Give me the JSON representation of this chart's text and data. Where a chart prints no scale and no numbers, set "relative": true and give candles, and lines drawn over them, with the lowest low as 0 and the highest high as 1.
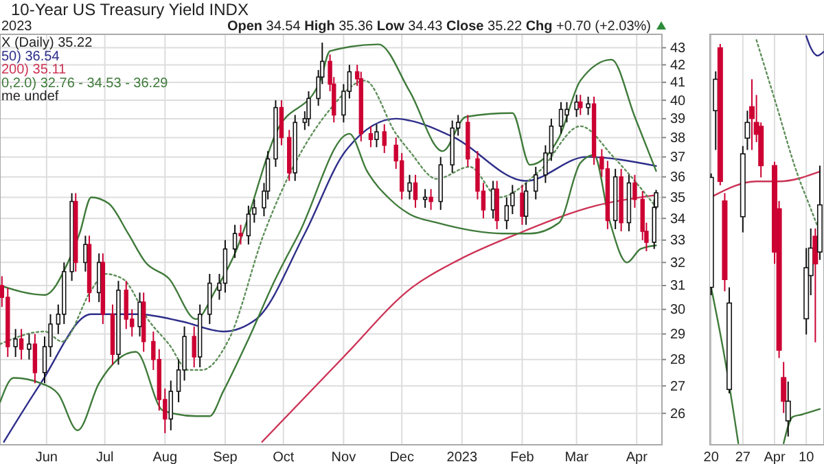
{
  "chart_data": [
    {
      "type": "candlestick",
      "title": "10-Year US Treasury Yield INDX",
      "subtitle": "Open 34.54 High 35.36 Low 34.43 Close 35.22 Chg +0.70 (+2.03%)",
      "annotations": [
        "2023",
        "X (Daily) 35.22",
        "me undef"
      ],
      "log": true,
      "grid": true,
      "legend": "top left",
      "xlim": [
        "2022-05-08",
        "2023-04-14"
      ],
      "xticks": [
        {
          "value": "2022-06-01",
          "label": "Jun"
        },
        {
          "value": "2022-07-01",
          "label": "Jul"
        },
        {
          "value": "2022-08-01",
          "label": "Aug"
        },
        {
          "value": "2022-09-01",
          "label": "Sep"
        },
        {
          "value": "2022-10-01",
          "label": "Oct"
        },
        {
          "value": "2022-11-01",
          "label": "Nov"
        },
        {
          "value": "2022-12-01",
          "label": "Dec"
        },
        {
          "value": "2023-01-01",
          "label": "2023"
        },
        {
          "value": "2023-02-01",
          "label": "Feb"
        },
        {
          "value": "2023-03-01",
          "label": "Mar"
        },
        {
          "value": "2023-04-01",
          "label": "Apr"
        }
      ],
      "ylim": [
        24.9,
        43.8
      ],
      "yticks": [
        26,
        27,
        28,
        29,
        30,
        31,
        32,
        33,
        34,
        35,
        36,
        37,
        38,
        39,
        40,
        41,
        42,
        43
      ],
      "x": [
        "2022-05-09",
        "2022-05-12",
        "2022-05-16",
        "2022-05-19",
        "2022-05-23",
        "2022-05-26",
        "2022-05-31",
        "2022-06-03",
        "2022-06-07",
        "2022-06-10",
        "2022-06-14",
        "2022-06-16",
        "2022-06-21",
        "2022-06-23",
        "2022-06-28",
        "2022-06-30",
        "2022-07-05",
        "2022-07-08",
        "2022-07-12",
        "2022-07-15",
        "2022-07-19",
        "2022-07-21",
        "2022-07-26",
        "2022-07-29",
        "2022-08-01",
        "2022-08-04",
        "2022-08-08",
        "2022-08-11",
        "2022-08-16",
        "2022-08-19",
        "2022-08-24",
        "2022-08-29",
        "2022-09-01",
        "2022-09-06",
        "2022-09-09",
        "2022-09-13",
        "2022-09-16",
        "2022-09-21",
        "2022-09-23",
        "2022-09-27",
        "2022-09-30",
        "2022-10-04",
        "2022-10-07",
        "2022-10-12",
        "2022-10-14",
        "2022-10-19",
        "2022-10-21",
        "2022-10-25",
        "2022-10-27",
        "2022-11-01",
        "2022-11-04",
        "2022-11-08",
        "2022-11-10",
        "2022-11-15",
        "2022-11-18",
        "2022-11-22",
        "2022-11-28",
        "2022-12-01",
        "2022-12-05",
        "2022-12-08",
        "2022-12-13",
        "2022-12-16",
        "2022-12-21",
        "2022-12-27",
        "2022-12-30",
        "2023-01-04",
        "2023-01-09",
        "2023-01-12",
        "2023-01-17",
        "2023-01-19",
        "2023-01-24",
        "2023-01-27",
        "2023-02-01",
        "2023-02-03",
        "2023-02-08",
        "2023-02-13",
        "2023-02-16",
        "2023-02-21",
        "2023-02-24",
        "2023-03-01",
        "2023-03-03",
        "2023-03-07",
        "2023-03-10",
        "2023-03-14",
        "2023-03-17",
        "2023-03-21",
        "2023-03-24",
        "2023-03-28",
        "2023-03-31",
        "2023-04-04",
        "2023-04-06",
        "2023-04-10",
        "2023-04-11"
      ],
      "ohlc": [
        [
          31.0,
          31.4,
          30.1,
          30.5
        ],
        [
          30.5,
          30.9,
          28.1,
          28.5
        ],
        [
          28.5,
          29.2,
          28.1,
          28.8
        ],
        [
          28.8,
          29.2,
          28.0,
          28.4
        ],
        [
          28.4,
          29.0,
          28.0,
          28.6
        ],
        [
          28.6,
          29.0,
          27.1,
          27.5
        ],
        [
          27.5,
          28.9,
          27.1,
          28.5
        ],
        [
          28.5,
          29.8,
          28.1,
          29.4
        ],
        [
          29.4,
          30.2,
          29.0,
          29.8
        ],
        [
          29.8,
          32.0,
          29.4,
          31.6
        ],
        [
          31.6,
          35.2,
          31.2,
          34.8
        ],
        [
          34.8,
          35.2,
          31.6,
          32.0
        ],
        [
          32.0,
          33.2,
          31.6,
          32.8
        ],
        [
          32.8,
          33.2,
          30.3,
          30.7
        ],
        [
          30.7,
          32.4,
          30.3,
          32.0
        ],
        [
          32.0,
          32.4,
          29.4,
          29.8
        ],
        [
          29.8,
          30.2,
          27.8,
          28.2
        ],
        [
          28.2,
          31.2,
          27.8,
          30.8
        ],
        [
          30.8,
          31.2,
          29.2,
          29.6
        ],
        [
          29.6,
          30.0,
          28.9,
          29.3
        ],
        [
          29.3,
          30.7,
          28.9,
          30.3
        ],
        [
          30.3,
          30.7,
          28.3,
          28.7
        ],
        [
          28.7,
          29.1,
          27.6,
          28.0
        ],
        [
          28.0,
          28.4,
          26.1,
          26.5
        ],
        [
          26.5,
          26.9,
          25.3,
          25.8
        ],
        [
          25.8,
          27.2,
          25.4,
          26.8
        ],
        [
          26.8,
          28.0,
          26.4,
          27.6
        ],
        [
          27.6,
          29.3,
          27.2,
          28.9
        ],
        [
          28.9,
          29.3,
          27.7,
          28.1
        ],
        [
          28.1,
          30.2,
          27.7,
          29.8
        ],
        [
          29.8,
          31.5,
          29.4,
          31.1
        ],
        [
          30.8,
          31.5,
          30.4,
          31.1
        ],
        [
          31.1,
          33.0,
          30.7,
          32.6
        ],
        [
          32.6,
          33.7,
          32.2,
          33.3
        ],
        [
          33.3,
          33.7,
          32.8,
          33.2
        ],
        [
          33.2,
          34.6,
          32.8,
          34.2
        ],
        [
          34.2,
          34.9,
          33.8,
          34.5
        ],
        [
          34.5,
          35.7,
          34.1,
          35.3
        ],
        [
          35.3,
          37.3,
          34.9,
          36.9
        ],
        [
          36.9,
          40.0,
          36.5,
          39.6
        ],
        [
          39.6,
          40.0,
          37.6,
          38.0
        ],
        [
          38.0,
          38.4,
          35.8,
          36.2
        ],
        [
          36.2,
          39.2,
          35.8,
          38.8
        ],
        [
          38.8,
          39.4,
          38.4,
          39.0
        ],
        [
          39.0,
          40.5,
          38.6,
          40.1
        ],
        [
          40.1,
          41.7,
          39.7,
          41.3
        ],
        [
          41.3,
          43.3,
          40.9,
          42.2
        ],
        [
          42.2,
          42.6,
          40.5,
          40.9
        ],
        [
          40.9,
          41.3,
          38.8,
          39.2
        ],
        [
          39.2,
          40.9,
          38.8,
          40.5
        ],
        [
          40.5,
          42.0,
          40.1,
          41.6
        ],
        [
          41.6,
          42.0,
          40.8,
          41.2
        ],
        [
          41.2,
          41.6,
          37.8,
          38.2
        ],
        [
          38.2,
          38.6,
          37.5,
          37.9
        ],
        [
          37.9,
          38.7,
          37.5,
          38.3
        ],
        [
          38.3,
          38.7,
          37.2,
          37.6
        ],
        [
          37.6,
          38.0,
          36.4,
          36.8
        ],
        [
          36.8,
          37.2,
          34.9,
          35.3
        ],
        [
          35.3,
          36.1,
          34.9,
          35.7
        ],
        [
          35.7,
          36.1,
          34.5,
          34.9
        ],
        [
          34.9,
          35.4,
          34.5,
          35.0
        ],
        [
          35.0,
          35.4,
          34.4,
          34.8
        ],
        [
          34.8,
          37.0,
          34.4,
          36.6
        ],
        [
          36.6,
          38.9,
          36.2,
          38.5
        ],
        [
          38.5,
          39.2,
          38.1,
          38.8
        ],
        [
          38.8,
          39.2,
          36.5,
          36.9
        ],
        [
          36.9,
          37.3,
          34.9,
          35.3
        ],
        [
          35.3,
          35.7,
          34.0,
          34.4
        ],
        [
          34.4,
          35.8,
          34.0,
          35.4
        ],
        [
          35.4,
          35.8,
          33.5,
          33.9
        ],
        [
          33.9,
          35.0,
          33.5,
          34.6
        ],
        [
          34.6,
          35.6,
          34.2,
          35.2
        ],
        [
          35.2,
          35.6,
          33.7,
          34.1
        ],
        [
          34.1,
          35.7,
          33.7,
          35.3
        ],
        [
          35.3,
          36.5,
          34.9,
          36.1
        ],
        [
          36.1,
          37.6,
          35.7,
          37.2
        ],
        [
          37.2,
          39.0,
          36.8,
          38.6
        ],
        [
          38.6,
          39.9,
          38.2,
          39.5
        ],
        [
          39.2,
          39.9,
          38.8,
          39.5
        ],
        [
          39.5,
          40.3,
          39.1,
          39.9
        ],
        [
          39.9,
          40.3,
          39.2,
          39.6
        ],
        [
          39.6,
          40.2,
          39.2,
          39.8
        ],
        [
          39.8,
          40.2,
          36.6,
          37.0
        ],
        [
          37.0,
          37.4,
          36.0,
          36.4
        ],
        [
          36.4,
          36.8,
          33.5,
          33.9
        ],
        [
          33.9,
          36.4,
          33.5,
          36.0
        ],
        [
          36.0,
          36.4,
          33.4,
          33.8
        ],
        [
          33.8,
          36.1,
          33.4,
          35.7
        ],
        [
          35.7,
          36.1,
          34.5,
          34.9
        ],
        [
          34.9,
          35.3,
          33.0,
          33.4
        ],
        [
          33.4,
          33.8,
          32.5,
          32.9
        ],
        [
          32.9,
          34.9,
          32.6,
          34.52
        ],
        [
          34.54,
          35.36,
          34.43,
          35.22
        ]
      ],
      "series": [
        {
          "type": "line",
          "name": "50) 36.54",
          "color": "#2e2e8a",
          "x": [
            "2022-05-10",
            "2022-05-29",
            "2022-06-24",
            "2022-07-18",
            "2022-08-10",
            "2022-08-31",
            "2022-09-17",
            "2022-10-12",
            "2022-11-02",
            "2022-11-28",
            "2022-12-05",
            "2022-12-28",
            "2023-02-03",
            "2023-03-06",
            "2023-04-11"
          ],
          "values": [
            25.0,
            27.1,
            29.8,
            29.8,
            29.5,
            29.1,
            29.6,
            33.3,
            37.3,
            39.0,
            38.9,
            38.0,
            35.8,
            37.0,
            36.54
          ]
        },
        {
          "type": "line",
          "name": "200) 35.11",
          "color": "#cc3355",
          "x": [
            "2022-09-20",
            "2022-11-01",
            "2022-12-06",
            "2022-12-30",
            "2023-01-30",
            "2023-03-11",
            "2023-04-11"
          ],
          "values": [
            25.0,
            28.1,
            30.9,
            32.1,
            33.3,
            34.6,
            35.11
          ]
        },
        {
          "type": "line",
          "name": "0,2.0) 32.76 - 34.53 - 36.29",
          "color": "#3f7a3a",
          "x": [
            "2022-05-08",
            "2022-05-31",
            "2022-06-12",
            "2022-06-18",
            "2022-06-24",
            "2022-07-03",
            "2022-07-13",
            "2022-07-22",
            "2022-08-03",
            "2022-08-17",
            "2022-08-27",
            "2022-09-07",
            "2022-09-10",
            "2022-09-27",
            "2022-10-20",
            "2022-10-25",
            "2022-11-19",
            "2022-12-05",
            "2022-12-22",
            "2023-01-03",
            "2023-01-27",
            "2023-02-05",
            "2023-02-20",
            "2023-03-03",
            "2023-03-19",
            "2023-03-31",
            "2023-04-11"
          ],
          "values": [
            31.0,
            30.6,
            32.0,
            33.3,
            35.0,
            34.7,
            33.3,
            32.0,
            31.3,
            29.6,
            30.8,
            32.6,
            33.3,
            38.2,
            41.1,
            42.8,
            43.2,
            40.5,
            37.3,
            39.1,
            39.3,
            36.6,
            38.0,
            41.1,
            42.3,
            39.1,
            36.29
          ]
        },
        {
          "type": "line",
          "color": "#3f7a3a",
          "x": [
            "2022-05-08",
            "2022-05-15",
            "2022-05-29",
            "2022-06-07",
            "2022-06-17",
            "2022-06-28",
            "2022-07-17",
            "2022-07-31",
            "2022-08-17",
            "2022-08-24",
            "2022-08-31",
            "2022-09-13",
            "2022-09-27",
            "2022-10-09",
            "2022-11-04",
            "2022-11-13",
            "2022-11-25",
            "2022-12-05",
            "2022-12-19",
            "2023-01-22",
            "2023-02-05",
            "2023-02-20",
            "2023-03-03",
            "2023-03-10",
            "2023-03-18",
            "2023-03-27",
            "2023-04-03",
            "2023-04-11"
          ],
          "values": [
            26.4,
            27.3,
            27.1,
            26.7,
            25.4,
            27.1,
            28.3,
            26.1,
            25.9,
            25.9,
            26.8,
            28.8,
            31.3,
            33.3,
            38.2,
            36.3,
            34.9,
            34.2,
            33.8,
            33.3,
            33.3,
            33.8,
            36.7,
            37.1,
            33.9,
            32.0,
            32.6,
            32.76
          ]
        },
        {
          "type": "line",
          "color": "#5f8f5a",
          "line_style": "dotted",
          "x": [
            "2022-05-08",
            "2022-05-31",
            "2022-06-09",
            "2022-06-24",
            "2022-07-01",
            "2022-07-10",
            "2022-07-24",
            "2022-08-03",
            "2022-08-13",
            "2022-08-20",
            "2022-09-03",
            "2022-09-21",
            "2022-10-25",
            "2022-11-12",
            "2022-11-28",
            "2022-12-05",
            "2022-12-19",
            "2023-01-05",
            "2023-01-20",
            "2023-02-10",
            "2023-03-03",
            "2023-03-20",
            "2023-04-11"
          ],
          "values": [
            28.6,
            29.1,
            28.7,
            30.8,
            31.5,
            31.3,
            29.5,
            28.6,
            27.6,
            27.6,
            28.8,
            33.3,
            39.5,
            41.1,
            38.2,
            37.3,
            35.9,
            36.5,
            35.0,
            36.3,
            38.6,
            37.0,
            34.53
          ]
        }
      ]
    },
    {
      "type": "candlestick",
      "relative": true,
      "grid": "x",
      "xlim": [
        "2023-03-19T18:00",
        "2023-04-13T22:00"
      ],
      "xticks": [
        {
          "value": "2023-03-20",
          "label": "20"
        },
        {
          "value": "2023-03-27",
          "label": "27"
        },
        {
          "value": "2023-04-03",
          "label": "Apr"
        },
        {
          "value": "2023-04-10",
          "label": "10"
        }
      ],
      "x": [
        "2023-03-20",
        "2023-03-21",
        "2023-03-22",
        "2023-03-23",
        "2023-03-24",
        "2023-03-27",
        "2023-03-28",
        "2023-03-29",
        "2023-03-30",
        "2023-03-31",
        "2023-04-03",
        "2023-04-04",
        "2023-04-05",
        "2023-04-06",
        "2023-04-10",
        "2023-04-11",
        "2023-04-12",
        "2023-04-13"
      ],
      "ohlc": [
        [
          0.38,
          0.67,
          0.36,
          0.66
        ],
        [
          0.83,
          0.93,
          0.73,
          0.91
        ],
        [
          0.99,
          1.0,
          0.64,
          0.65
        ],
        [
          0.6,
          0.62,
          0.37,
          0.4
        ],
        [
          0.12,
          0.38,
          0.11,
          0.34
        ],
        [
          0.56,
          0.74,
          0.52,
          0.72
        ],
        [
          0.76,
          0.83,
          0.73,
          0.8
        ],
        [
          0.84,
          0.91,
          0.73,
          0.81
        ],
        [
          0.8,
          0.87,
          0.75,
          0.77
        ],
        [
          0.79,
          0.8,
          0.66,
          0.69
        ],
        [
          0.69,
          0.7,
          0.44,
          0.47
        ],
        [
          0.58,
          0.6,
          0.2,
          0.22
        ],
        [
          0.15,
          0.19,
          0.06,
          0.09
        ],
        [
          0.04,
          0.14,
          0.0,
          0.09
        ],
        [
          0.3,
          0.48,
          0.26,
          0.43
        ],
        [
          0.41,
          0.53,
          0.36,
          0.48
        ],
        [
          0.51,
          0.53,
          0.24,
          0.44
        ],
        [
          0.47,
          0.69,
          0.45,
          0.59
        ]
      ],
      "series": [
        {
          "type": "line",
          "color": "#cc3355",
          "x": [
            "2023-03-20",
            "2023-03-30",
            "2023-04-04",
            "2023-04-13"
          ],
          "values": [
            0.61,
            0.65,
            0.65,
            0.675
          ]
        },
        {
          "type": "line",
          "color": "#5f8f5a",
          "line_style": "dotted",
          "x": [
            "2023-03-30",
            "2023-04-03",
            "2023-04-08",
            "2023-04-11",
            "2023-04-13"
          ],
          "values": [
            1.01,
            0.86,
            0.67,
            0.58,
            0.52
          ]
        },
        {
          "type": "line",
          "color": "#3f7a3a",
          "x": [
            "2023-03-20",
            "2023-03-23",
            "2023-03-26",
            "2023-03-30",
            "2023-04-05",
            "2023-04-07",
            "2023-04-09",
            "2023-04-13"
          ],
          "values": [
            0.38,
            0.2,
            -0.017,
            null,
            -0.017,
            0.05,
            0.056,
            0.07
          ]
        },
        {
          "type": "line",
          "color": "#2e2e8a",
          "x": [
            "2023-04-10",
            "2023-04-11",
            "2023-04-12T12:00",
            "2023-04-13T20:00"
          ],
          "values": [
            1.02,
            0.99,
            0.97,
            0.98
          ]
        }
      ]
    }
  ]
}
